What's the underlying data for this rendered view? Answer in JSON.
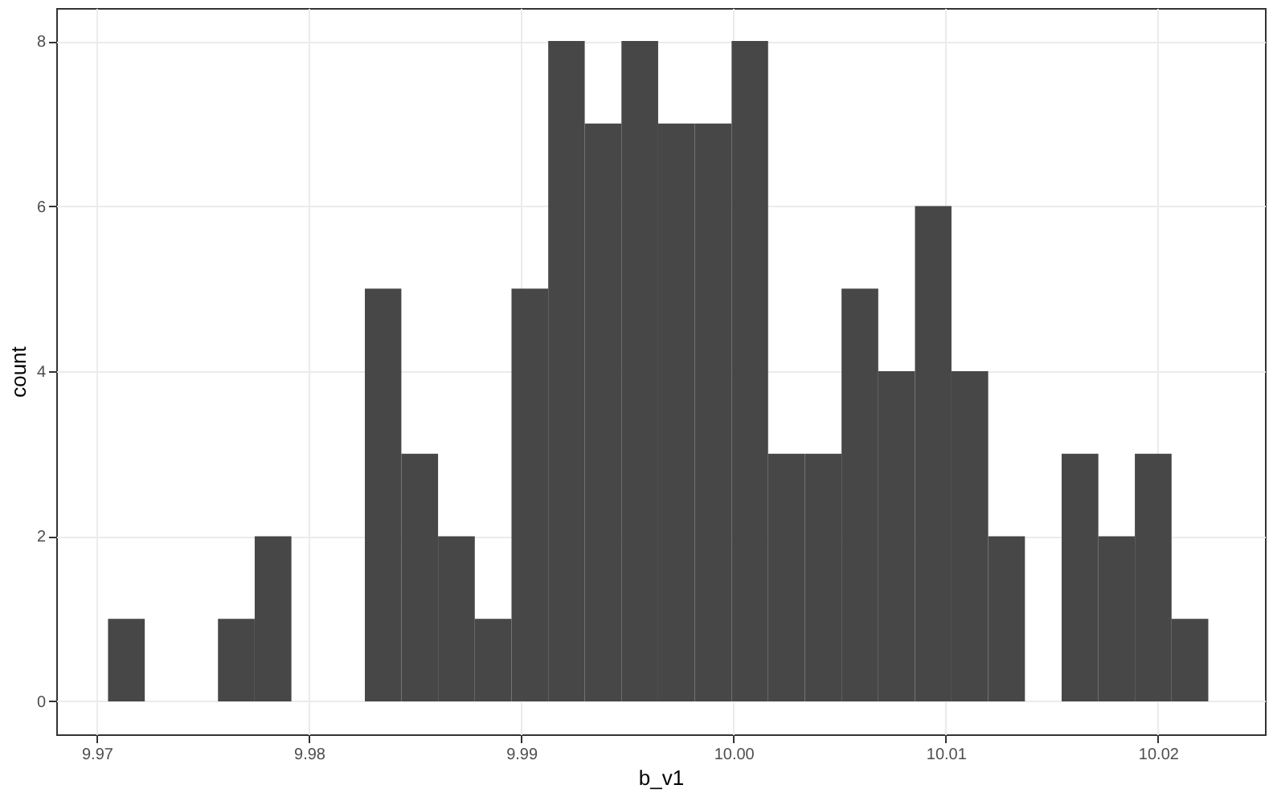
{
  "chart_data": {
    "type": "histogram",
    "xlabel": "b_v1",
    "ylabel": "count",
    "color": "#474747",
    "bins": [
      9.97053,
      9.97226,
      9.97399,
      9.97571,
      9.97744,
      9.97917,
      9.9809,
      9.98263,
      9.98435,
      9.98608,
      9.98781,
      9.98954,
      9.99127,
      9.99299,
      9.99472,
      9.99645,
      9.99818,
      9.99991,
      10.00163,
      10.00336,
      10.00509,
      10.00682,
      10.00855,
      10.01027,
      10.012,
      10.01373,
      10.01546,
      10.01719,
      10.01891,
      10.02064,
      10.02237
    ],
    "values": [
      1,
      0,
      0,
      1,
      2,
      0,
      0,
      5,
      3,
      2,
      1,
      5,
      8,
      7,
      8,
      7,
      7,
      8,
      3,
      3,
      5,
      4,
      6,
      4,
      2,
      0,
      3,
      2,
      3,
      1
    ],
    "xlim": [
      9.96809,
      10.02504
    ],
    "ylim": [
      -0.4,
      8.4
    ],
    "xticks": [
      9.97,
      9.98,
      9.99,
      {
        "value": 10.0,
        "label": "10.00"
      },
      10.01,
      10.02
    ],
    "yticks": [
      0,
      2,
      4,
      6,
      8
    ],
    "grid": true
  }
}
